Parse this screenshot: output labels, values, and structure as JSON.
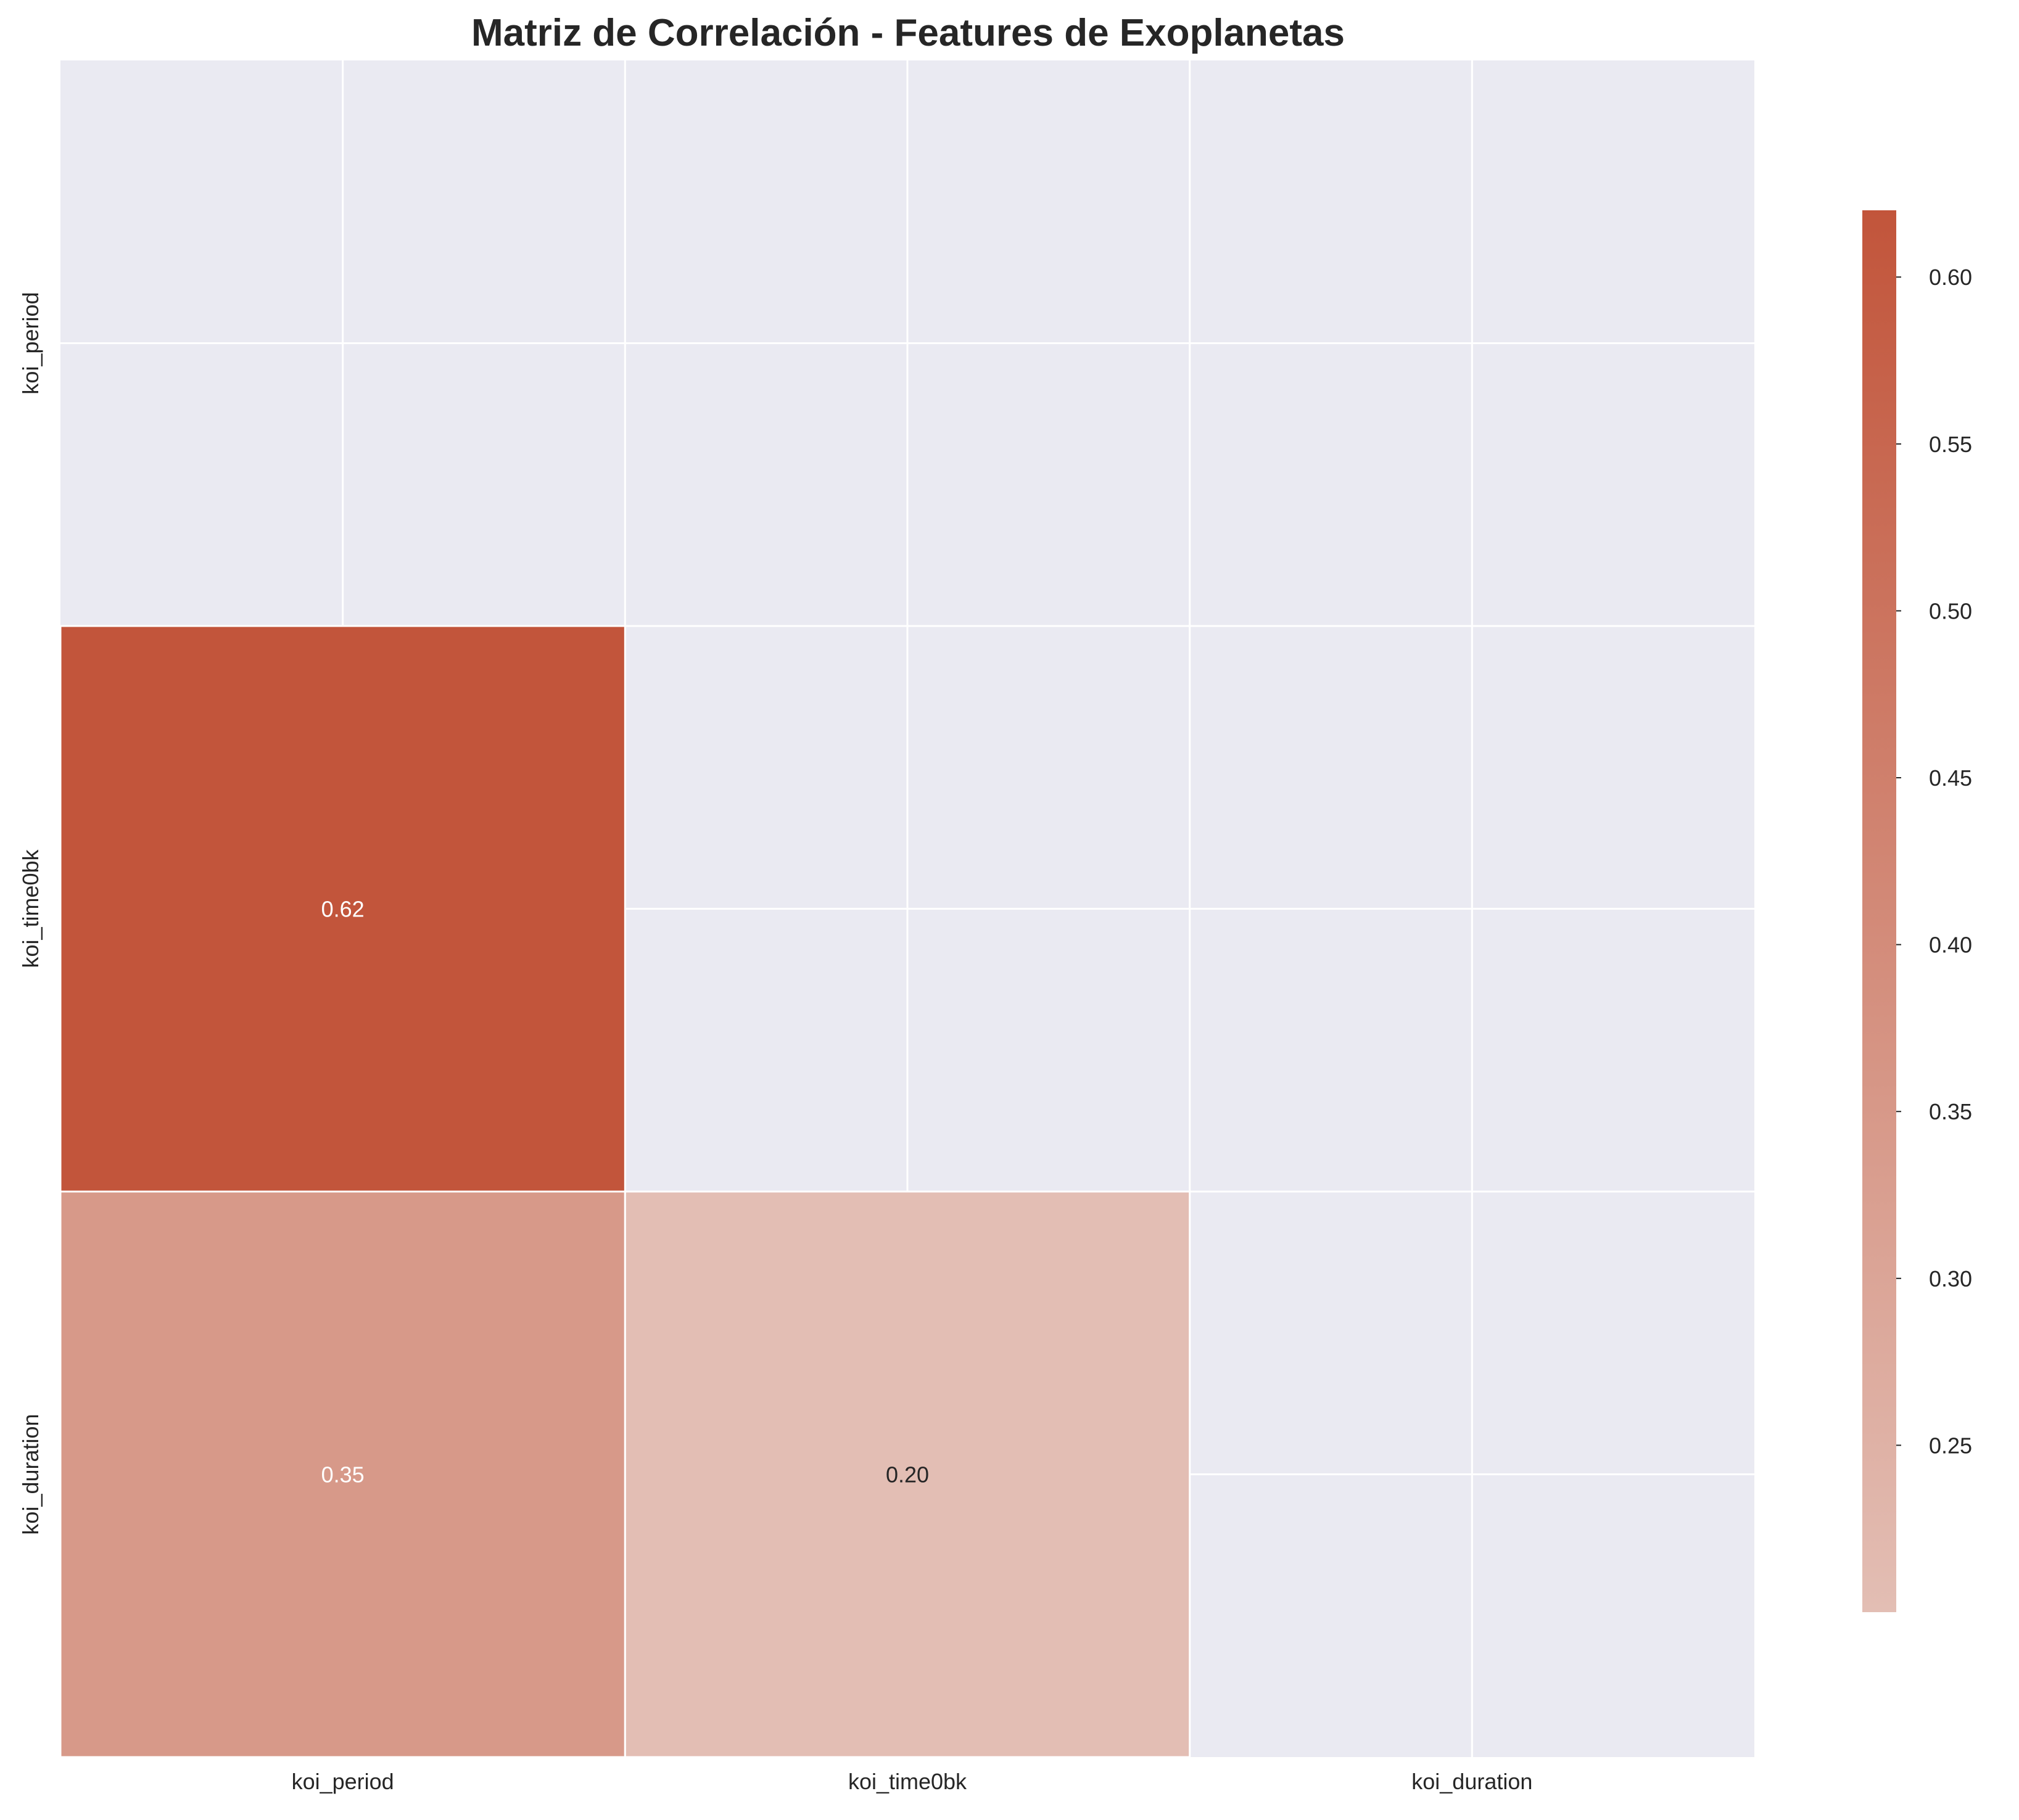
{
  "chart_data": {
    "type": "heatmap",
    "title": "Matriz de Correlación - Features de Exoplanetas",
    "xlabel": "",
    "ylabel": "",
    "labels": [
      "koi_period",
      "koi_time0bk",
      "koi_duration"
    ],
    "matrix": [
      [
        null,
        null,
        null
      ],
      [
        0.62,
        null,
        null
      ],
      [
        0.35,
        0.2,
        null
      ]
    ],
    "cell_text": [
      [
        "",
        "",
        ""
      ],
      [
        "0.62",
        "",
        ""
      ],
      [
        "0.35",
        "0.20",
        ""
      ]
    ],
    "mask": "upper triangle including diagonal",
    "grid": true,
    "colorbar": {
      "position": "right",
      "range": [
        0.2,
        0.62
      ],
      "ticks": [
        0.25,
        0.3,
        0.35,
        0.4,
        0.45,
        0.5,
        0.55,
        0.6
      ],
      "tick_labels": [
        "0.25",
        "0.30",
        "0.35",
        "0.40",
        "0.45",
        "0.50",
        "0.55",
        "0.60"
      ]
    }
  },
  "colors": {
    "background_axes": "#eaeaf2",
    "grid": "#ffffff",
    "colormap_low": "#e3beb4",
    "colormap_high": "#c2553b",
    "text_dark": "#262626",
    "text_light": "#ffffff"
  }
}
